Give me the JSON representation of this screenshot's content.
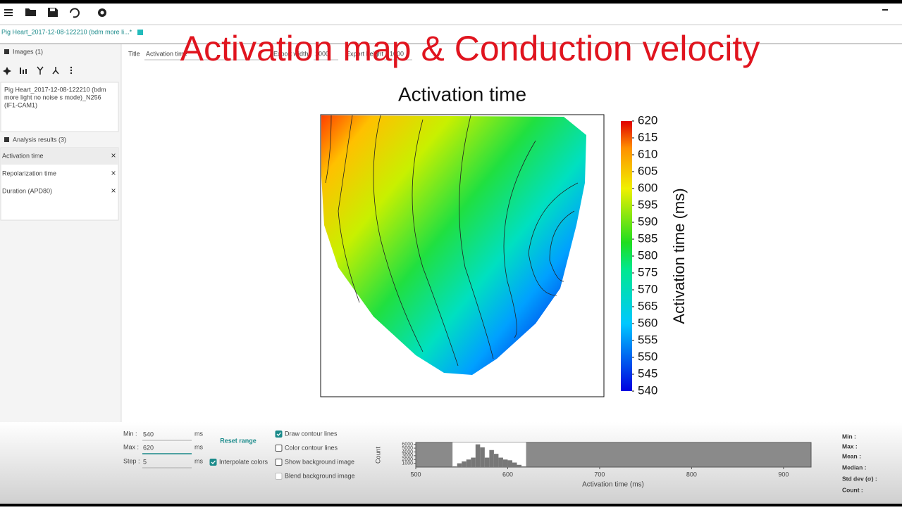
{
  "overlay_title": "Activation map & Conduction velocity",
  "tab": "Pig Heart_2017-12-08-122210 (bdm more li...*",
  "sidebar": {
    "images_header": "Images (1)",
    "image_name": [
      "Pig Heart_2017-12-08-122210 (bdm",
      "more light no noise s mode)_N256",
      "(IF1-CAM1)"
    ],
    "analysis_header": "Analysis results (3)",
    "results": [
      "Activation time",
      "Repolarization time",
      "Duration (APD80)"
    ]
  },
  "export": {
    "title_label": "Title",
    "title_value": "Activation time",
    "width_label": "Export width",
    "width_value": "1000",
    "height_label": "Export height",
    "height_value": "1000"
  },
  "map": {
    "title": "Activation time",
    "colorbar_label": "Activation time (ms)",
    "clim": [
      540,
      620
    ],
    "cticks": [
      540,
      545,
      550,
      555,
      560,
      565,
      570,
      575,
      580,
      585,
      590,
      595,
      600,
      605,
      610,
      615,
      620
    ]
  },
  "controls": {
    "min_label": "Min :",
    "min": "540",
    "max_label": "Max :",
    "max": "620",
    "step_label": "Step :",
    "step": "5",
    "unit": "ms",
    "reset": "Reset range",
    "interpolate": {
      "label": "Interpolate colors",
      "checked": true
    },
    "checkboxes": [
      {
        "label": "Draw contour lines",
        "checked": true,
        "enabled": true
      },
      {
        "label": "Color contour lines",
        "checked": false,
        "enabled": true
      },
      {
        "label": "Show background image",
        "checked": false,
        "enabled": true
      },
      {
        "label": "Blend background image",
        "checked": false,
        "enabled": false
      }
    ]
  },
  "histogram": {
    "ylabel": "Count",
    "xlabel": "Activation time (ms)",
    "xlim": [
      500,
      930
    ],
    "xticks": [
      500,
      600,
      700,
      800,
      900
    ],
    "ylim": [
      0,
      6500
    ],
    "yticks": [
      1000,
      2000,
      3000,
      4000,
      5000,
      6000
    ],
    "highlight": [
      540,
      620
    ],
    "bins": [
      540,
      545,
      550,
      555,
      560,
      565,
      570,
      575,
      580,
      585,
      590,
      595,
      600,
      605,
      610,
      615,
      620
    ],
    "counts": [
      200,
      1000,
      1500,
      2000,
      2500,
      6000,
      5200,
      2500,
      4500,
      3500,
      2500,
      2000,
      1800,
      1200,
      600,
      200
    ]
  },
  "stats": [
    "Min :",
    "Max :",
    "Mean :",
    "Median :",
    "Std dev (σ) :",
    "Count :"
  ]
}
